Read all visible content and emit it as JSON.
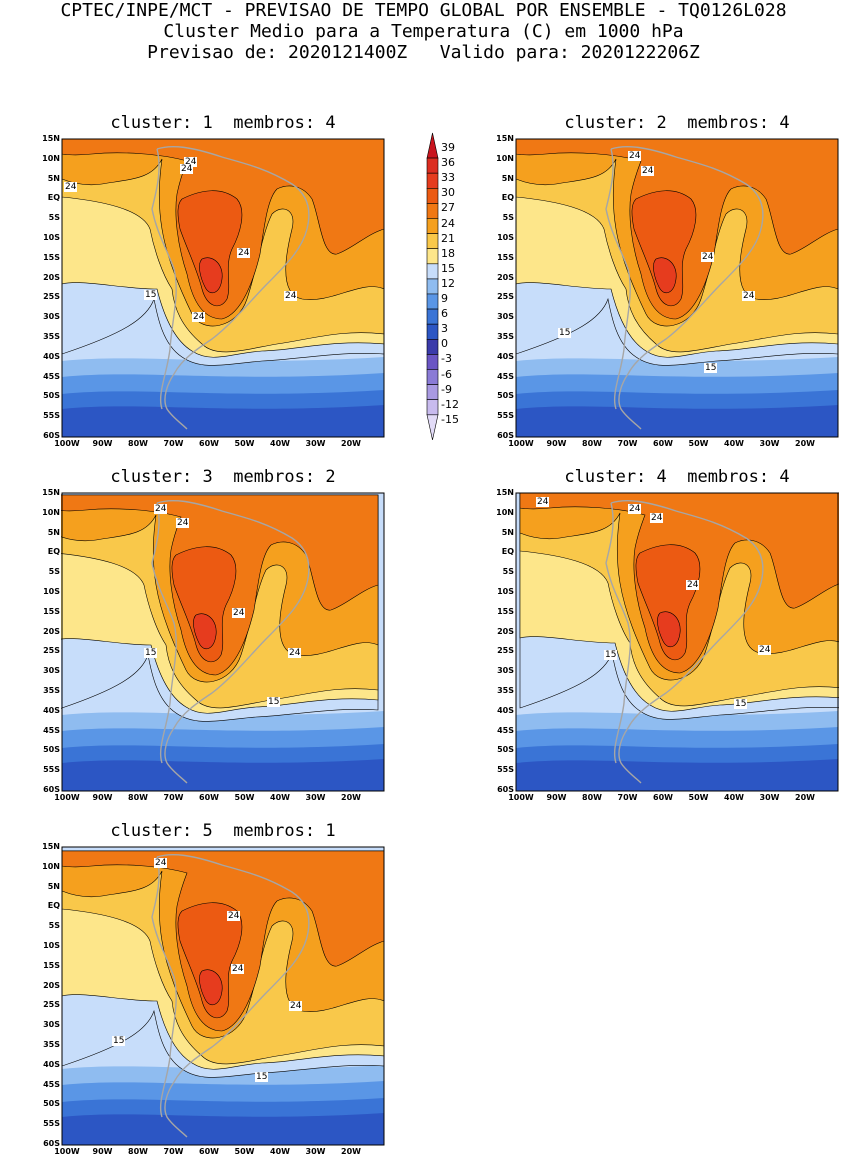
{
  "header": {
    "line1": "CPTEC/INPE/MCT - PREVISAO DE TEMPO GLOBAL POR ENSEMBLE - TQ0126L028",
    "line2": "Cluster Medio para a Temperatura (C) em 1000 hPa",
    "line3": "Previsao de: 2020121400Z   Valido para: 2020122206Z"
  },
  "panels": [
    {
      "title": "cluster: 1  membros: 4",
      "contour_labels": [
        "24",
        "24",
        "24",
        "24",
        "24",
        "15",
        "24"
      ]
    },
    {
      "title": "cluster: 2  membros: 4",
      "contour_labels": [
        "24",
        "24",
        "24",
        "24",
        "15",
        "15"
      ]
    },
    {
      "title": "cluster: 3  membros: 2",
      "contour_labels": [
        "24",
        "24",
        "24",
        "15",
        "24",
        "15"
      ]
    },
    {
      "title": "cluster: 4  membros: 4",
      "contour_labels": [
        "24",
        "24",
        "24",
        "24",
        "15",
        "24",
        "15"
      ]
    },
    {
      "title": "cluster: 5  membros: 1",
      "contour_labels": [
        "24",
        "24",
        "24",
        "15",
        "24",
        "15"
      ]
    }
  ],
  "axes": {
    "lat_labels": [
      "15N",
      "10N",
      "5N",
      "EQ",
      "5S",
      "10S",
      "15S",
      "20S",
      "25S",
      "30S",
      "35S",
      "40S",
      "45S",
      "50S",
      "55S",
      "60S"
    ],
    "lon_labels": [
      "100W",
      "90W",
      "80W",
      "70W",
      "60W",
      "50W",
      "40W",
      "30W",
      "20W"
    ]
  },
  "colorbar": {
    "levels": [
      "39",
      "36",
      "33",
      "30",
      "27",
      "24",
      "21",
      "18",
      "15",
      "12",
      "9",
      "6",
      "3",
      "0",
      "-3",
      "-6",
      "-9",
      "-12",
      "-15"
    ],
    "colors": [
      "#c8141e",
      "#dc2d20",
      "#e63c1e",
      "#ec5a12",
      "#f07814",
      "#f5a01e",
      "#f9c84a",
      "#fde68a",
      "#c7ddfa",
      "#8fbcf0",
      "#5a96e6",
      "#3a74d6",
      "#2c56c4",
      "#3a3aaa",
      "#6a55c4",
      "#8a7bd6",
      "#a99ae2",
      "#c8bbee",
      "#e2dbf7"
    ]
  },
  "theme": {
    "coastline": "#a6a6a6",
    "contour": "#000000"
  }
}
